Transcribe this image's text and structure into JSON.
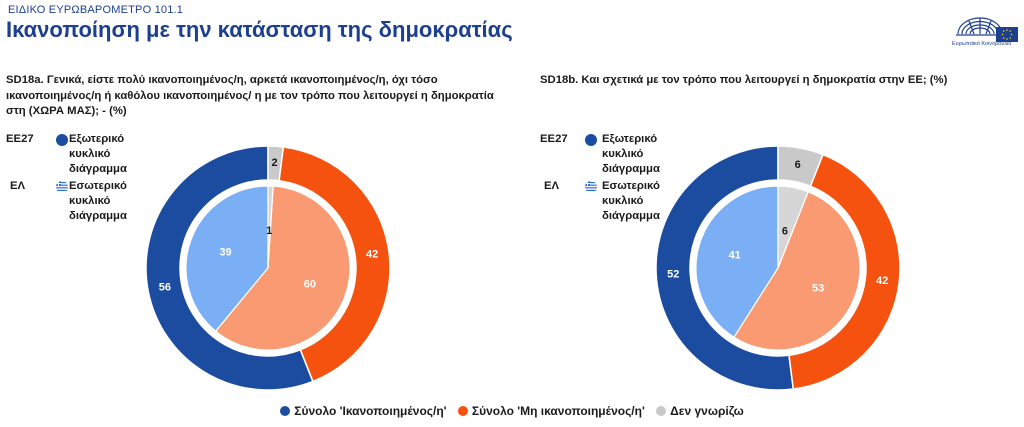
{
  "header": {
    "supertitle": "ΕΙΔΙΚΟ ΕΥΡΩΒΑΡΟΜΕΤΡΟ 101.1",
    "title": "Ικανοποίηση με την κατάσταση της δημοκρατίας",
    "logo_text": "Ευρωπαϊκό Κοινοβούλιο"
  },
  "colors": {
    "outer_satisfied": "#1c4ca0",
    "outer_not_satisfied": "#f5520f",
    "outer_dont_know": "#c9c9c9",
    "inner_satisfied": "#7aaef5",
    "inner_not_satisfied": "#f99a72",
    "inner_dont_know": "#d6d6d6"
  },
  "side_legend": {
    "eu_label": "ΕΕ27",
    "eu_desc": "Εξωτερικό κυκλικό διάγραμμα",
    "gr_label": "ΕΛ",
    "gr_desc": "Εσωτερικό κυκλικό διάγραμμα"
  },
  "bottom_legend": {
    "satisfied": "Σύνολο 'Ικανοποιημένος/η'",
    "not_satisfied": "Σύνολο 'Μη ικανοποιημένος/η'",
    "dont_know": "Δεν γνωρίζω"
  },
  "chart_data": [
    {
      "type": "pie",
      "title": "SD18a. Γενικά, είστε πολύ ικανοποιημένος/η, αρκετά ικανοποιημένος/η, όχι τόσο ικανοποιημένος/η ή καθόλου ικανοποιημένος/ η με τον τρόπο που λειτουργεί η δημοκρατία στη (ΧΩΡΑ ΜΑΣ); - (%)",
      "categories": [
        "Σύνολο 'Ικανοποιημένος/η'",
        "Σύνολο 'Μη ικανοποιημένος/η'",
        "Δεν γνωρίζω"
      ],
      "series": [
        {
          "name": "ΕΕ27",
          "values": [
            56,
            42,
            2
          ]
        },
        {
          "name": "ΕΛ",
          "values": [
            39,
            60,
            1
          ]
        }
      ]
    },
    {
      "type": "pie",
      "title": "SD18b. Και σχετικά με τον τρόπο που λειτουργεί η δημοκρατία στην ΕΕ; (%)",
      "categories": [
        "Σύνολο 'Ικανοποιημένος/η'",
        "Σύνολο 'Μη ικανοποιημένος/η'",
        "Δεν γνωρίζω"
      ],
      "series": [
        {
          "name": "ΕΕ27",
          "values": [
            52,
            42,
            6
          ]
        },
        {
          "name": "ΕΛ",
          "values": [
            41,
            53,
            6
          ]
        }
      ]
    }
  ]
}
